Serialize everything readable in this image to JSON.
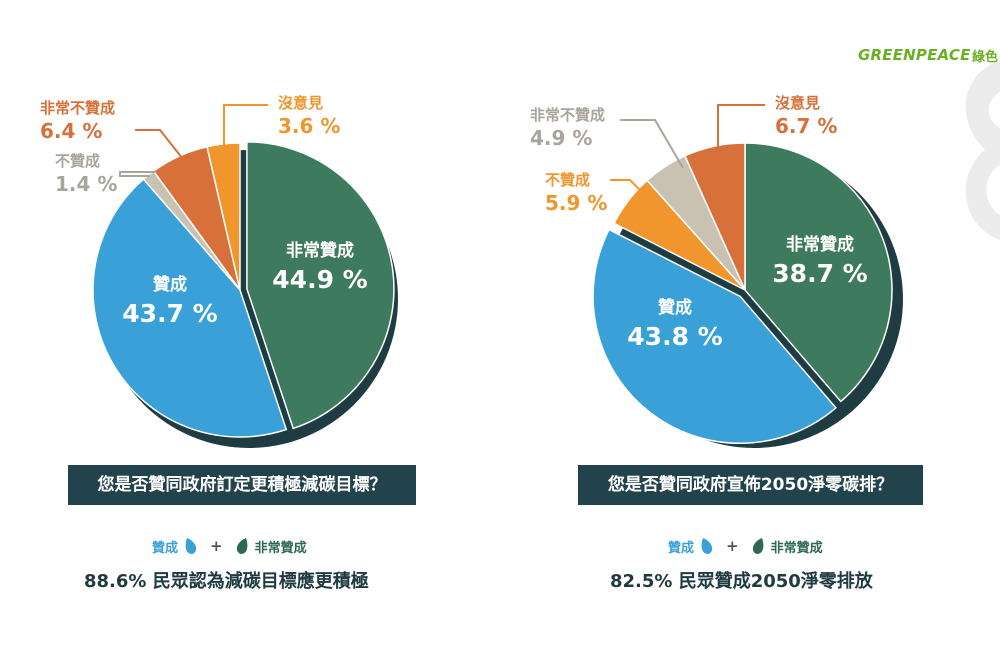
{
  "brand": {
    "logo_text": "GREENPEACE",
    "logo_cn": "綠色"
  },
  "colors": {
    "very_agree": "#3e7a5e",
    "agree": "#39a1d8",
    "disagree_gray": "#c9c1b2",
    "very_disagree": "#d8703a",
    "no_opinion": "#f0962c",
    "shadow": "#1e3c42",
    "title_bg": "#22434b"
  },
  "chart_data": [
    {
      "type": "pie",
      "title": "您是否贊同政府訂定更積極減碳目標？",
      "slices": [
        {
          "label": "非常贊成",
          "value": 44.9,
          "display": "44.9 %",
          "color": "#3e7a5e",
          "explode": true,
          "text_pos": "inside"
        },
        {
          "label": "贊成",
          "value": 43.7,
          "display": "43.7 %",
          "color": "#39a1d8",
          "text_pos": "inside"
        },
        {
          "label": "不贊成",
          "value": 1.4,
          "display": "1.4 %",
          "color": "#c9c1b2",
          "label_color": "#aaa59c",
          "text_pos": "callout"
        },
        {
          "label": "非常不贊成",
          "value": 6.4,
          "display": "6.4 %",
          "color": "#d8703a",
          "label_color": "#d8703a",
          "text_pos": "callout"
        },
        {
          "label": "沒意見",
          "value": 3.6,
          "display": "3.6 %",
          "color": "#f0962c",
          "label_color": "#f0962c",
          "text_pos": "callout"
        }
      ],
      "legend": {
        "agree": "贊成",
        "plus": "+",
        "very_agree": "非常贊成"
      },
      "summary": "88.6% 民眾認為減碳目標應更積極"
    },
    {
      "type": "pie",
      "title": "您是否贊同政府宣佈2050淨零碳排？",
      "slices": [
        {
          "label": "非常贊成",
          "value": 38.7,
          "display": "38.7 %",
          "color": "#3e7a5e",
          "text_pos": "inside"
        },
        {
          "label": "贊成",
          "value": 43.8,
          "display": "43.8 %",
          "color": "#39a1d8",
          "explode": true,
          "text_pos": "inside"
        },
        {
          "label": "不贊成",
          "value": 5.9,
          "display": "5.9 %",
          "color": "#f0962c",
          "label_color": "#f0962c",
          "text_pos": "callout"
        },
        {
          "label": "非常不贊成",
          "value": 4.9,
          "display": "4.9 %",
          "color": "#c9c1b2",
          "label_color": "#aaa59c",
          "text_pos": "callout"
        },
        {
          "label": "沒意見",
          "value": 6.7,
          "display": "6.7 %",
          "color": "#d8703a",
          "label_color": "#d8703a",
          "text_pos": "callout"
        }
      ],
      "legend": {
        "agree": "贊成",
        "plus": "+",
        "very_agree": "非常贊成"
      },
      "summary": "82.5% 民眾贊成2050淨零排放"
    }
  ]
}
